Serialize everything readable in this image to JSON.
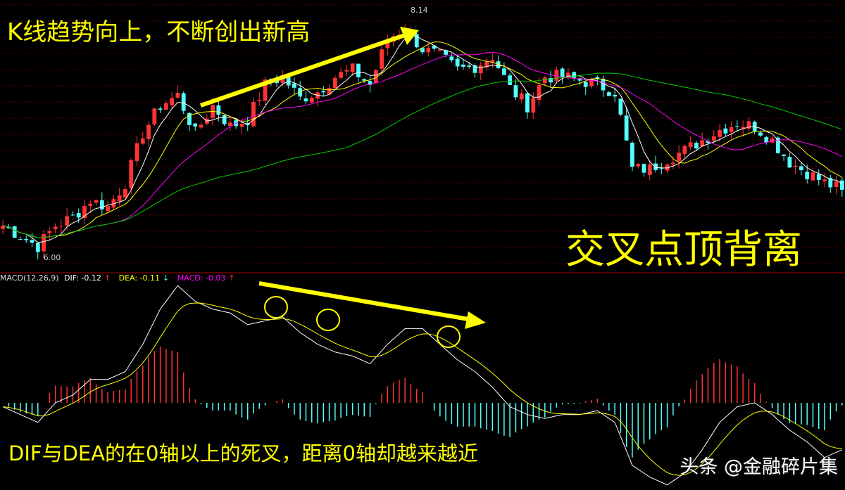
{
  "annotations": {
    "top": "K线趋势向上，不断创出新高",
    "middle": "交叉点顶背离",
    "bottom": "DIF与DEA的在0轴以上的死叉，距离0轴却越来越近"
  },
  "watermark": "头条 @金融碎片集",
  "colors": {
    "up": "#ff3333",
    "down": "#54ffff",
    "ma5": "#ffffff",
    "ma10": "#ffff00",
    "ma20": "#ff00ff",
    "ma60": "#00cc00",
    "dif": "#ffffff",
    "dea": "#ffff00",
    "grid": "#8b0000",
    "annotation": "#ffff00"
  },
  "chart_data": [
    {
      "type": "candlestick",
      "title": "",
      "high_label": "8.14",
      "low_label": "6.00",
      "ylim": [
        6.0,
        8.14
      ],
      "closes": [
        6.27,
        6.18,
        6.09,
        6.27,
        6.34,
        6.49,
        6.43,
        6.64,
        7.07,
        7.31,
        7.4,
        7.07,
        7.31,
        7.13,
        7.19,
        7.49,
        7.56,
        7.37,
        7.43,
        7.56,
        7.62,
        7.49,
        7.89,
        7.98,
        7.8,
        7.74,
        7.62,
        7.65,
        7.74,
        7.46,
        7.31,
        7.56,
        7.56,
        7.53,
        7.49,
        7.43,
        6.76,
        6.76,
        6.85,
        6.92,
        7.01,
        7.1,
        7.16,
        7.13,
        7.01,
        6.82,
        6.73,
        6.64,
        6.58
      ],
      "moving_averages": [
        "MA5",
        "MA10",
        "MA20",
        "MA60"
      ]
    },
    {
      "type": "macd",
      "legend": {
        "name": "MACD(12,26,9)",
        "dif": "DIF: -0.12",
        "dea": "DEA: -0.11",
        "macd": "MACD: -0.03",
        "dif_arrow": "↑",
        "dea_arrow": "↓",
        "macd_arrow": "↑"
      },
      "dif": [
        -0.01,
        -0.03,
        -0.05,
        0.0,
        0.02,
        0.06,
        0.06,
        0.08,
        0.15,
        0.24,
        0.3,
        0.26,
        0.24,
        0.23,
        0.2,
        0.21,
        0.22,
        0.18,
        0.15,
        0.13,
        0.12,
        0.1,
        0.15,
        0.19,
        0.19,
        0.15,
        0.11,
        0.08,
        0.04,
        -0.01,
        -0.03,
        -0.04,
        -0.03,
        -0.03,
        -0.02,
        -0.05,
        -0.16,
        -0.19,
        -0.21,
        -0.18,
        -0.12,
        -0.05,
        -0.01,
        0.0,
        -0.03,
        -0.07,
        -0.1,
        -0.14,
        -0.12
      ]
    }
  ]
}
